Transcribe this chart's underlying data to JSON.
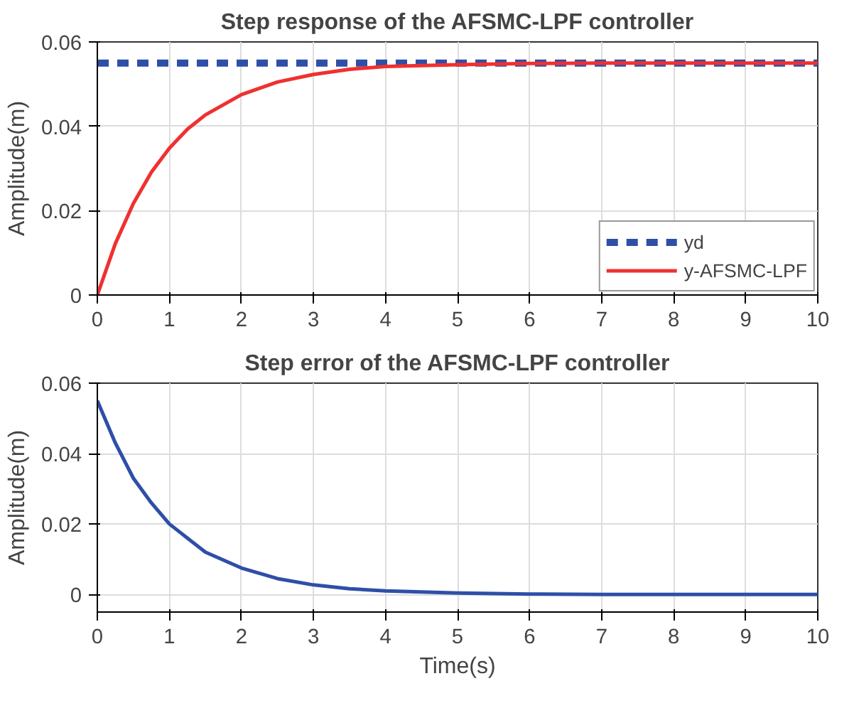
{
  "chart_data": [
    {
      "type": "line",
      "title": "Step response of the AFSMC-LPF controller",
      "ylabel": "Amplitude(m)",
      "x": [
        0,
        0.25,
        0.5,
        0.75,
        1,
        1.25,
        1.5,
        2,
        2.5,
        3,
        3.5,
        4,
        5,
        6,
        7,
        8,
        9,
        10
      ],
      "series": [
        {
          "name": "yd",
          "color": "#2e4fa8",
          "line_style": "dashed",
          "x": [
            0,
            10
          ],
          "values": [
            0.055,
            0.055
          ]
        },
        {
          "name": "y-AFSMC-LPF",
          "color": "#f03030",
          "line_style": "solid",
          "values": [
            0,
            0.0122,
            0.0217,
            0.0291,
            0.0348,
            0.0393,
            0.0427,
            0.0475,
            0.0505,
            0.0523,
            0.0535,
            0.0542,
            0.0546,
            0.0549,
            0.055,
            0.055,
            0.055,
            0.055
          ]
        }
      ],
      "xlim": [
        0,
        10
      ],
      "xticks": [
        0,
        1,
        2,
        3,
        4,
        5,
        6,
        7,
        8,
        9,
        10
      ],
      "ylim": [
        0,
        0.06
      ],
      "yticks": [
        0,
        0.02,
        0.04,
        0.06
      ],
      "grid": true,
      "legend": "bottom right"
    },
    {
      "type": "line",
      "title": "Step error of the AFSMC-LPF controller",
      "xlabel": "Time(s)",
      "ylabel": "Amplitude(m)",
      "x": [
        0,
        0.25,
        0.5,
        0.75,
        1,
        1.25,
        1.5,
        2,
        2.5,
        3,
        3.5,
        4,
        5,
        6,
        7,
        8,
        9,
        10
      ],
      "series": [
        {
          "color": "#2e4fa8",
          "line_style": "solid",
          "values": [
            0.055,
            0.043,
            0.033,
            0.026,
            0.02,
            0.016,
            0.012,
            0.0075,
            0.0045,
            0.0027,
            0.0016,
            0.001,
            0.0004,
            0.0001,
            0,
            0,
            0,
            0
          ]
        }
      ],
      "xlim": [
        0,
        10
      ],
      "xticks": [
        0,
        1,
        2,
        3,
        4,
        5,
        6,
        7,
        8,
        9,
        10
      ],
      "ylim": [
        -0.005,
        0.06
      ],
      "yticks": [
        0,
        0.02,
        0.04,
        0.06
      ],
      "grid": true,
      "legend": false
    }
  ]
}
